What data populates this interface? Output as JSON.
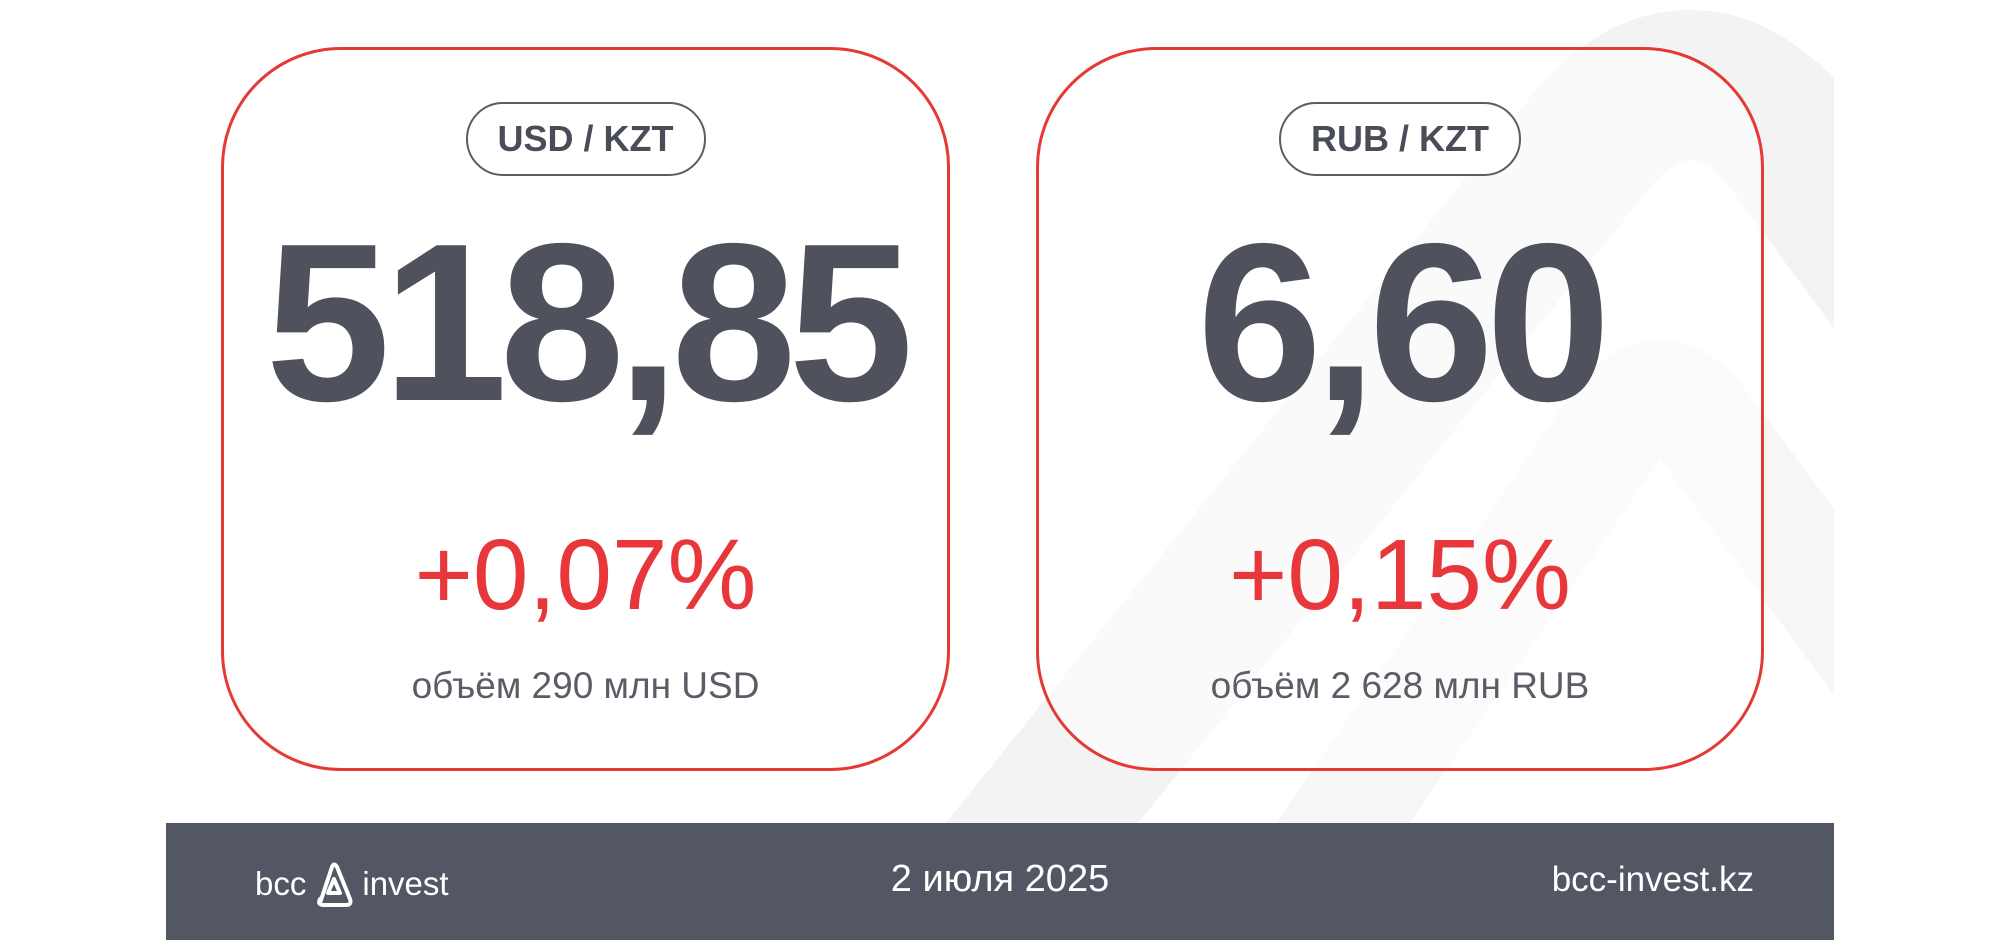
{
  "cards": [
    {
      "pair": "USD / KZT",
      "rate": "518,85",
      "change": "+0,07%",
      "volume": "объём 290 млн USD"
    },
    {
      "pair": "RUB / KZT",
      "rate": "6,60",
      "change": "+0,15%",
      "volume": "объём 2 628 млн RUB"
    }
  ],
  "footer": {
    "logo_left": "bcc",
    "logo_right": "invest",
    "date": "2 июля 2025",
    "site": "bcc-invest.kz"
  },
  "colors": {
    "accent": "#e53935",
    "change": "#e8373a",
    "footer_bg": "#535663",
    "text_dark": "#4f525d"
  }
}
